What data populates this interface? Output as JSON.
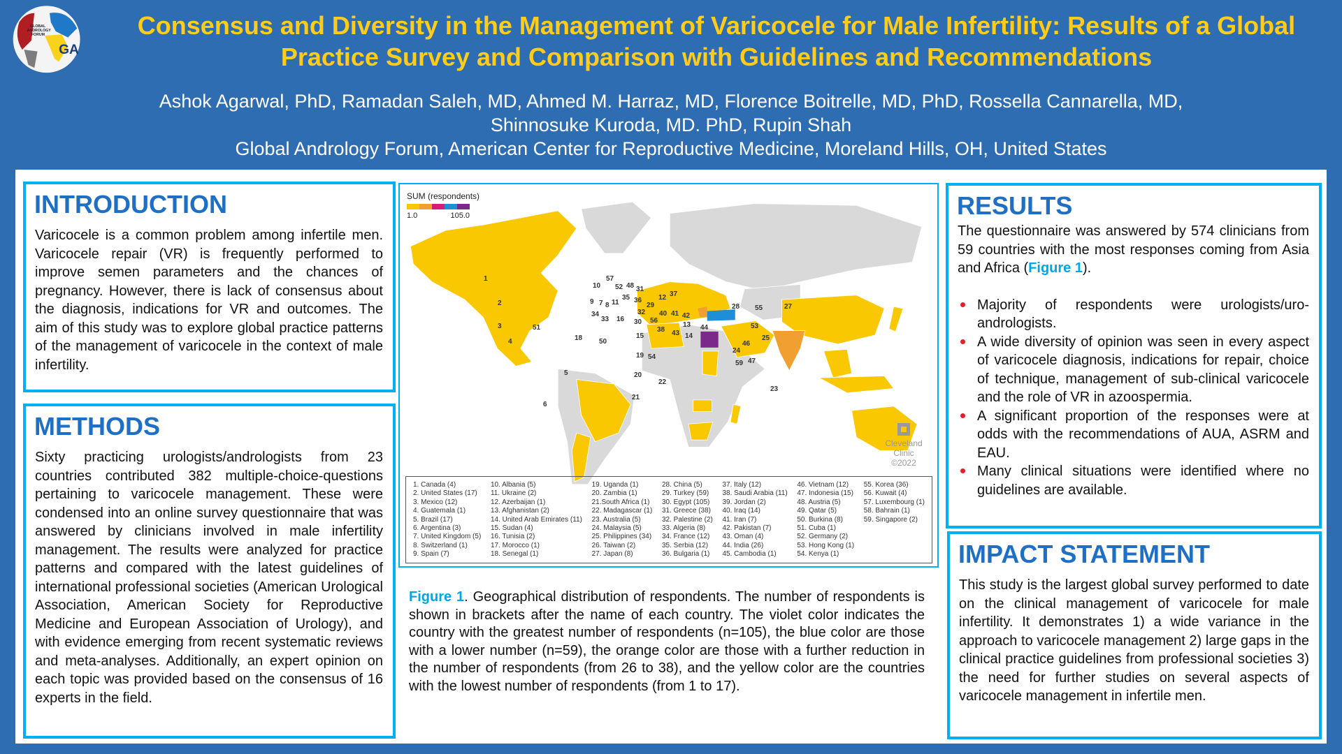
{
  "header": {
    "logo_text": "GLOBAL ANDROLOGY FORUM GA",
    "title": "Consensus and Diversity in the Management of Varicocele for Male Infertility: Results of a Global Practice Survey and Comparison with Guidelines and Recommendations",
    "authors_line1": "Ashok Agarwal, PhD, Ramadan Saleh, MD, Ahmed M. Harraz, MD, Florence Boitrelle, MD, PhD, Rossella Cannarella, MD,",
    "authors_line2": "Shinnosuke Kuroda, MD. PhD, Rupin Shah",
    "affiliation": "Global Andrology Forum, American Center for Reproductive Medicine, Moreland Hills, OH, United States"
  },
  "introduction": {
    "heading": "INTRODUCTION",
    "text": "Varicocele is a common problem among infertile men. Varicocele repair (VR) is frequently performed to improve semen parameters and the chances of pregnancy. However, there is lack of consensus about the diagnosis, indications for VR and outcomes. The aim of this study was to explore global practice patterns of the management of varicocele in the context of male infertility."
  },
  "methods": {
    "heading": "METHODS",
    "text": "Sixty practicing urologists/andrologists from 23 countries contributed 382 multiple-choice-questions pertaining to varicocele management. These were condensed into an online survey questionnaire that was answered by clinicians involved in male infertility management. The results were analyzed for practice patterns and compared with the latest guidelines of international professional societies (American Urological Association, American Society for Reproductive Medicine and European Association of Urology), and with evidence emerging from recent systematic reviews and meta-analyses. Additionally, an expert opinion on each topic was provided based on the consensus of 16 experts in the field."
  },
  "figure": {
    "legend_title": "SUM (respondents)",
    "legend_min": "1.0",
    "legend_max": "105.0",
    "legend_colors": [
      "#f9c800",
      "#f0a030",
      "#d81b7a",
      "#1e8fd6",
      "#7b2a8c"
    ],
    "watermark_name": "Cleveland Clinic",
    "watermark_year": "©2022",
    "map_labels": [
      "1",
      "2",
      "3",
      "4",
      "51",
      "5",
      "6",
      "18",
      "50",
      "33",
      "16",
      "9",
      "7",
      "57",
      "52",
      "48",
      "35",
      "31",
      "36",
      "29",
      "32",
      "12",
      "30",
      "56",
      "40",
      "41",
      "42",
      "13",
      "44",
      "15",
      "19",
      "54",
      "20",
      "21",
      "22",
      "28",
      "55",
      "27",
      "46",
      "53",
      "25",
      "24",
      "59",
      "47",
      "23",
      "43",
      "38",
      "14",
      "37",
      "34",
      "8",
      "10",
      "11"
    ],
    "countries": [
      [
        "1. Canada (4)",
        "2. United States (17)",
        "3. Mexico (12)",
        "4. Guatemala (1)",
        "5. Brazil (17)",
        "6. Argentina (3)",
        "7. United Kingdom (5)",
        "8. Switzerland (1)",
        "9. Spain (7)"
      ],
      [
        "10. Albania (5)",
        "11. Ukraine (2)",
        "12. Azerbaijan (1)",
        "13. Afghanistan (2)",
        "14. United Arab Emirates (11)",
        "15. Sudan (4)",
        "16. Tunisia (2)",
        "17. Morocco (1)",
        "18. Senegal (1)"
      ],
      [
        "19. Uganda (1)",
        "20. Zambia (1)",
        "21.South Africa (1)",
        "22. Madagascar (1)",
        "23. Australia (5)",
        "24. Malaysia (5)",
        "25. Philippines (34)",
        "26. Taiwan (2)",
        "27. Japan (8)"
      ],
      [
        "28. China (5)",
        "29. Turkey (59)",
        "30. Egypt (105)",
        "31. Greece (38)",
        "32. Palestine (2)",
        "33. Algeria (8)",
        "34. France (12)",
        "35. Serbia (12)",
        "36. Bulgaria (1)"
      ],
      [
        "37. Italy (12)",
        "38. Saudi Arabia (11)",
        "39. Jordan (2)",
        "40. Iraq (14)",
        "41. Iran (7)",
        "42. Pakistan (7)",
        "43. Oman (4)",
        "44. India (26)",
        "45. Cambodia (1)"
      ],
      [
        "46. Vietnam (12)",
        "47. Indonesia (15)",
        "48. Austria (5)",
        "49. Qatar (5)",
        "50. Burkina (8)",
        "51. Cuba (1)",
        "52. Germany (2)",
        "53. Hong Kong (1)",
        "54. Kenya (1)"
      ],
      [
        "55. Korea (36)",
        "56. Kuwait (4)",
        "57. Luxembourg (1)",
        "58. Bahrain (1)",
        "59. Singapore (2)"
      ]
    ],
    "caption_label": "Figure 1",
    "caption_text": ". Geographical distribution of respondents. The number of respondents is shown in brackets after the name of each country. The violet color indicates the country with the greatest number of respondents (n=105), the blue color are those with a lower number (n=59), the orange color are those with a further reduction in the number of respondents (from 26 to 38), and the yellow color are the countries with the lowest number of respondents (from 1 to 17)."
  },
  "results": {
    "heading": "RESULTS",
    "intro_before": "The questionnaire was answered by 574 clinicians from 59 countries with the most responses coming from Asia and Africa (",
    "intro_link": "Figure 1",
    "intro_after": ").",
    "bullets": [
      "Majority of respondents were urologists/uro-andrologists.",
      "A wide diversity of opinion was seen in every aspect of varicocele diagnosis, indications for repair, choice of technique, management of sub-clinical varicocele and the role of VR in azoospermia.",
      "A significant proportion of the responses were at odds with the recommendations of AUA, ASRM and EAU.",
      "Many clinical situations were identified where no guidelines are available."
    ]
  },
  "impact": {
    "heading": "IMPACT STATEMENT",
    "text": "This study is the largest global survey performed to date on the clinical management of varicocele for male infertility. It demonstrates 1) a wide variance in the approach to varicocele management 2) large gaps in the clinical practice guidelines from professional societies 3) the need for further studies on several aspects of varicocele management in infertile men."
  },
  "colors": {
    "header_bg": "#2f6db3",
    "title": "#ffcc1a",
    "border": "#00b0f0",
    "heading": "#1f6fc5",
    "yellow": "#f9c800",
    "orange": "#f0a030",
    "blue": "#1e8fd6",
    "violet": "#7b2a8c",
    "land": "#d9d9d9"
  }
}
